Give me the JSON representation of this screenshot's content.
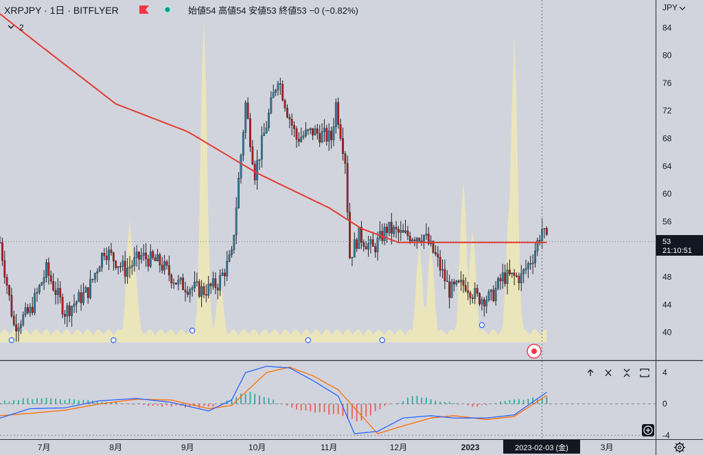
{
  "header": {
    "symbol_line": "XRPJPY · 1日 · BITFLYER",
    "ohlc_line": "始値54  高値54  安値53  終値53  −0 (−0.82%)",
    "indicator_label": "2"
  },
  "currency_label": "JPY",
  "price_marker": {
    "price": "53",
    "timer": "21:10:51"
  },
  "crosshair_date_label": "2023-02-03 (金)",
  "macd_pane": {
    "tick_labels": [
      "4",
      "0",
      "−4"
    ],
    "toolbar": [
      "move-up",
      "collapse",
      "maximize",
      "restore"
    ]
  },
  "colors": {
    "background": "#d1d4dc",
    "up_candle": "#2f7fa0",
    "down_candle": "#b71c1c",
    "moving_average": "#e53935",
    "volume": "#ece6b8",
    "macd_line": "#2962ff",
    "signal_line": "#ff6d00",
    "hist_up": "#26a69a",
    "hist_down": "#ef5350"
  },
  "chart_data": [
    {
      "type": "candlestick",
      "title": "XRPJPY · 1日 · BITFLYER",
      "ylabel": "JPY",
      "ylim": [
        36,
        88
      ],
      "yticks": [
        40,
        44,
        48,
        52,
        56,
        60,
        64,
        68,
        72,
        76,
        80,
        84
      ],
      "x_tick_labels": [
        "7月",
        "8月",
        "9月",
        "10月",
        "11月",
        "12月",
        "2023",
        "3月"
      ],
      "x_range": [
        "2022-06-12",
        "2023-03-22"
      ],
      "current_price": 53,
      "close_path": [
        [
          "2022-06-12",
          53
        ],
        [
          "2022-06-18",
          41
        ],
        [
          "2022-06-25",
          43
        ],
        [
          "2022-07-02",
          49
        ],
        [
          "2022-07-10",
          43
        ],
        [
          "2022-07-20",
          46
        ],
        [
          "2022-07-27",
          52
        ],
        [
          "2022-08-05",
          49
        ],
        [
          "2022-08-12",
          51
        ],
        [
          "2022-08-20",
          50
        ],
        [
          "2022-08-28",
          47
        ],
        [
          "2022-09-08",
          46
        ],
        [
          "2022-09-14",
          47
        ],
        [
          "2022-09-20",
          51
        ],
        [
          "2022-09-23",
          62
        ],
        [
          "2022-09-26",
          73
        ],
        [
          "2022-09-30",
          63
        ],
        [
          "2022-10-05",
          70
        ],
        [
          "2022-10-10",
          77
        ],
        [
          "2022-10-14",
          72
        ],
        [
          "2022-10-18",
          68
        ],
        [
          "2022-10-25",
          69
        ],
        [
          "2022-11-02",
          68
        ],
        [
          "2022-11-04",
          73
        ],
        [
          "2022-11-08",
          65
        ],
        [
          "2022-11-10",
          51
        ],
        [
          "2022-11-14",
          54
        ],
        [
          "2022-11-20",
          52
        ],
        [
          "2022-11-26",
          55
        ],
        [
          "2022-12-03",
          54
        ],
        [
          "2022-12-12",
          54
        ],
        [
          "2022-12-17",
          51
        ],
        [
          "2022-12-23",
          46
        ],
        [
          "2022-12-30",
          47
        ],
        [
          "2023-01-04",
          45
        ],
        [
          "2023-01-10",
          45
        ],
        [
          "2023-01-15",
          48
        ],
        [
          "2023-01-23",
          48
        ],
        [
          "2023-01-28",
          51
        ],
        [
          "2023-02-01",
          55
        ],
        [
          "2023-02-03",
          53
        ]
      ],
      "ma_path": [
        [
          "2022-06-12",
          86
        ],
        [
          "2022-07-01",
          81
        ],
        [
          "2022-08-01",
          73
        ],
        [
          "2022-09-01",
          69
        ],
        [
          "2022-10-01",
          63
        ],
        [
          "2022-11-01",
          58
        ],
        [
          "2022-11-15",
          55
        ],
        [
          "2022-12-01",
          53
        ],
        [
          "2023-01-01",
          53
        ],
        [
          "2023-02-03",
          53
        ]
      ],
      "volume_spikes": [
        [
          "2022-08-07",
          0.38
        ],
        [
          "2022-08-09",
          0.25
        ],
        [
          "2022-09-08",
          1.0
        ],
        [
          "2022-09-15",
          0.2
        ],
        [
          "2022-12-10",
          0.3
        ],
        [
          "2022-12-15",
          0.3
        ],
        [
          "2022-12-29",
          0.5
        ],
        [
          "2023-01-02",
          0.35
        ],
        [
          "2023-01-18",
          0.45
        ],
        [
          "2023-01-20",
          0.95
        ]
      ],
      "event_markers": [
        "2022-06-17",
        "2022-07-31",
        "2022-09-03",
        "2022-10-23",
        "2022-11-24",
        "2023-01-06"
      ]
    },
    {
      "type": "line",
      "name": "MACD",
      "ylim": [
        -4.5,
        5.5
      ],
      "yticks": [
        4,
        0,
        -4
      ],
      "x_range": [
        "2022-06-12",
        "2023-03-22"
      ],
      "macd": [
        [
          "2022-06-12",
          -1.8
        ],
        [
          "2022-06-25",
          -0.6
        ],
        [
          "2022-07-10",
          -0.5
        ],
        [
          "2022-07-25",
          0.4
        ],
        [
          "2022-08-10",
          0.7
        ],
        [
          "2022-08-25",
          0.2
        ],
        [
          "2022-09-10",
          -0.9
        ],
        [
          "2022-09-20",
          0.5
        ],
        [
          "2022-09-26",
          4.0
        ],
        [
          "2022-10-05",
          4.8
        ],
        [
          "2022-10-15",
          4.6
        ],
        [
          "2022-10-25",
          3.0
        ],
        [
          "2022-11-05",
          1.0
        ],
        [
          "2022-11-12",
          -3.8
        ],
        [
          "2022-11-22",
          -3.5
        ],
        [
          "2022-12-03",
          -1.8
        ],
        [
          "2022-12-15",
          -1.5
        ],
        [
          "2022-12-25",
          -1.8
        ],
        [
          "2023-01-08",
          -1.8
        ],
        [
          "2023-01-20",
          -1.4
        ],
        [
          "2023-02-03",
          1.5
        ]
      ],
      "signal": [
        [
          "2022-06-12",
          -1.5
        ],
        [
          "2022-06-25",
          -1.2
        ],
        [
          "2022-07-10",
          -0.8
        ],
        [
          "2022-07-25",
          0.0
        ],
        [
          "2022-08-10",
          0.6
        ],
        [
          "2022-08-25",
          0.5
        ],
        [
          "2022-09-10",
          -0.6
        ],
        [
          "2022-09-20",
          -0.2
        ],
        [
          "2022-09-26",
          1.5
        ],
        [
          "2022-10-05",
          4.0
        ],
        [
          "2022-10-15",
          4.7
        ],
        [
          "2022-10-25",
          3.6
        ],
        [
          "2022-11-05",
          1.8
        ],
        [
          "2022-11-12",
          -0.5
        ],
        [
          "2022-11-22",
          -3.8
        ],
        [
          "2022-12-03",
          -2.8
        ],
        [
          "2022-12-15",
          -1.8
        ],
        [
          "2022-12-25",
          -1.5
        ],
        [
          "2023-01-08",
          -2.0
        ],
        [
          "2023-01-20",
          -1.6
        ],
        [
          "2023-02-03",
          1.1
        ]
      ],
      "histogram_bands": [
        [
          "2022-06-12",
          0.3
        ],
        [
          "2022-06-28",
          0.8
        ],
        [
          "2022-07-18",
          0.5
        ],
        [
          "2022-08-01",
          0.2
        ],
        [
          "2022-08-20",
          -0.3
        ],
        [
          "2022-09-12",
          -0.4
        ],
        [
          "2022-09-22",
          1.0
        ],
        [
          "2022-09-28",
          1.6
        ],
        [
          "2022-10-08",
          0.4
        ],
        [
          "2022-10-20",
          -0.8
        ],
        [
          "2022-11-05",
          -1.4
        ],
        [
          "2022-11-14",
          -2.2
        ],
        [
          "2022-11-24",
          -0.5
        ],
        [
          "2022-12-08",
          1.0
        ],
        [
          "2022-12-22",
          0.2
        ],
        [
          "2023-01-05",
          -0.3
        ],
        [
          "2023-01-20",
          0.5
        ],
        [
          "2023-02-03",
          0.8
        ]
      ]
    }
  ]
}
